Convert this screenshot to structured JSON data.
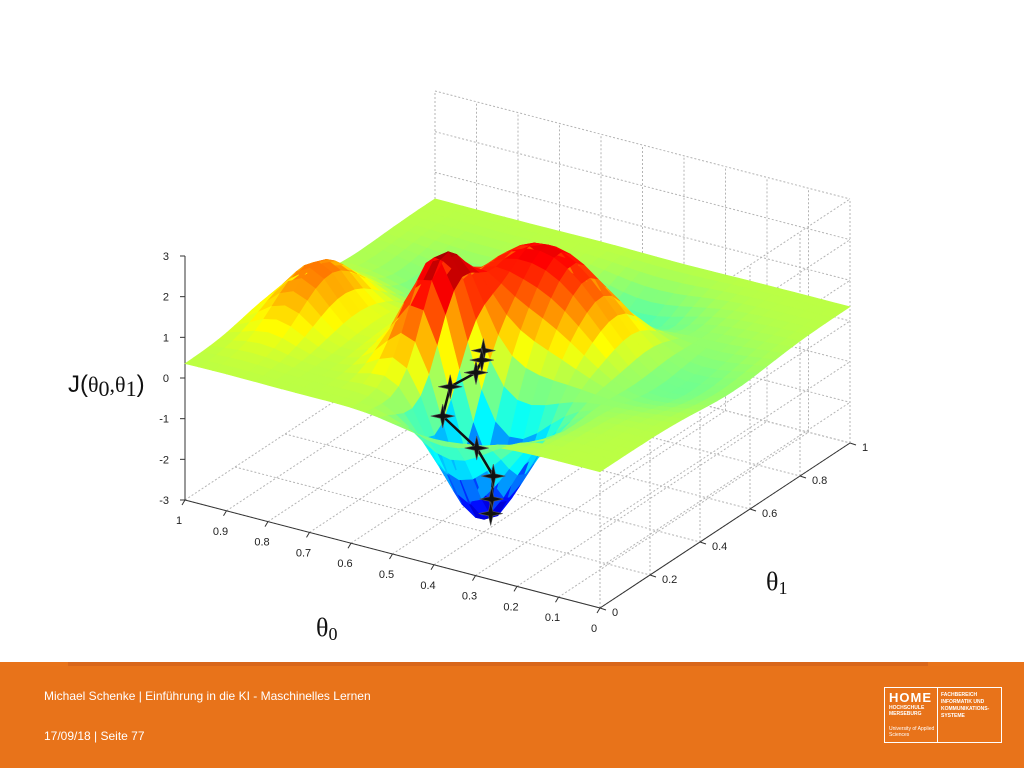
{
  "chart_data": {
    "type": "surface",
    "title": "",
    "zlabel_prefix": "J(",
    "zlabel_theta": "θ",
    "zlabel_sub0": "0",
    "zlabel_comma": ",",
    "zlabel_sub1": "1",
    "zlabel_suffix": ")",
    "xlabel_theta": "θ",
    "xlabel_sub": "0",
    "ylabel_theta": "θ",
    "ylabel_sub": "1",
    "x_ticks": [
      "1",
      "0.9",
      "0.8",
      "0.7",
      "0.6",
      "0.5",
      "0.4",
      "0.3",
      "0.2",
      "0.1",
      "0"
    ],
    "y_ticks": [
      "0",
      "0.2",
      "0.4",
      "0.6",
      "0.8",
      "1"
    ],
    "z_ticks": [
      "3",
      "2",
      "1",
      "0",
      "-1",
      "-2",
      "-3"
    ],
    "xlim": [
      0,
      1
    ],
    "ylim": [
      0,
      1
    ],
    "zlim": [
      -3,
      3
    ],
    "grid": true,
    "colormap": "jet",
    "path_points": [
      {
        "x": 0.54,
        "y": 0.43,
        "z": 0.15
      },
      {
        "x": 0.55,
        "y": 0.44,
        "z": -0.15
      },
      {
        "x": 0.57,
        "y": 0.45,
        "z": -0.55
      },
      {
        "x": 0.62,
        "y": 0.43,
        "z": -0.95
      },
      {
        "x": 0.62,
        "y": 0.4,
        "z": -1.55
      },
      {
        "x": 0.52,
        "y": 0.37,
        "z": -1.95
      },
      {
        "x": 0.45,
        "y": 0.32,
        "z": -2.25
      },
      {
        "x": 0.43,
        "y": 0.28,
        "z": -2.6
      },
      {
        "x": 0.42,
        "y": 0.26,
        "z": -2.85
      }
    ]
  },
  "footer": {
    "presenter": "Michael Schenke | Einführung in  die KI - Maschinelles Lernen",
    "date_page": "17/09/18 | Seite 77",
    "logo_brand": "HOME",
    "logo_sub": "HOCHSCHULE MERSEBURG",
    "logo_uni": "University of Applied Sciences",
    "logo_dept": "FACHBEREICH INFORMATIK UND KOMMUNIKATIONS-SYSTEME"
  },
  "colors": {
    "footer_bg": "#e8731a",
    "path_color": "#111111"
  }
}
